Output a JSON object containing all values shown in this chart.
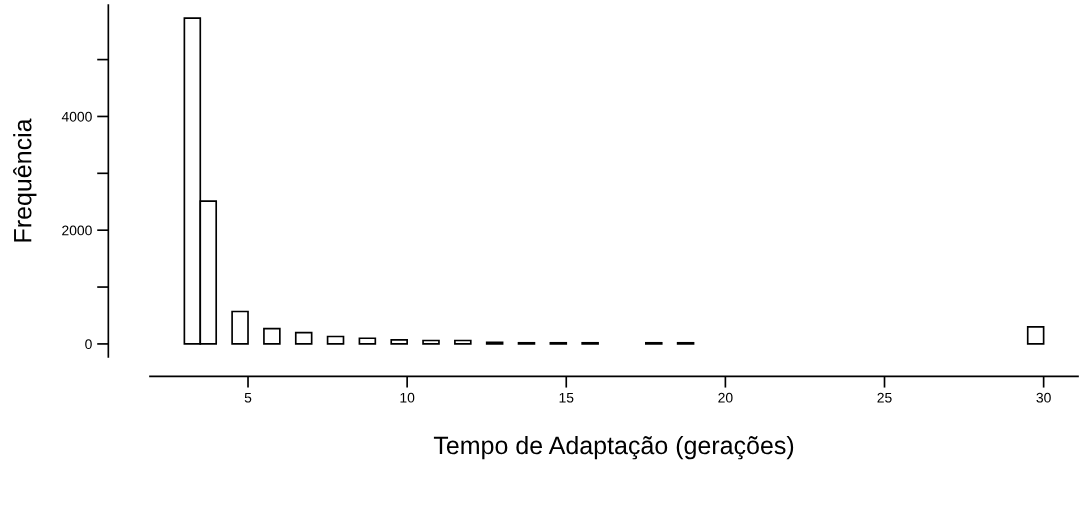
{
  "chart_data": {
    "type": "histogram",
    "xlabel": "Tempo de Adaptação (gerações)",
    "ylabel": "Frequência",
    "bins": [
      3,
      3.5,
      4,
      4.5,
      5,
      5.5,
      6,
      6.5,
      7,
      7.5,
      8,
      8.5,
      9,
      9.5,
      10,
      10.5,
      11,
      11.5,
      12,
      12.5,
      13,
      13.5,
      14,
      14.5,
      15,
      15.5,
      16,
      16.5,
      17,
      17.5,
      18,
      18.5,
      19,
      19.5,
      20,
      20.5,
      21,
      21.5,
      22,
      22.5,
      23,
      23.5,
      24,
      24.5,
      25,
      25.5,
      26,
      26.5,
      27,
      27.5,
      28,
      28.5,
      29,
      29.5,
      30
    ],
    "values": [
      5730,
      2510,
      0,
      570,
      0,
      270,
      0,
      200,
      0,
      130,
      0,
      100,
      0,
      70,
      0,
      60,
      0,
      60,
      0,
      30,
      0,
      20,
      0,
      20,
      0,
      20,
      0,
      0,
      0,
      20,
      0,
      20,
      0,
      0,
      0,
      0,
      0,
      0,
      0,
      0,
      0,
      0,
      0,
      0,
      0,
      0,
      0,
      0,
      0,
      0,
      0,
      0,
      0,
      300
    ],
    "color": "#ffffff",
    "xlim": [
      1.92,
      31.08
    ],
    "ylim": [
      -230,
      5960
    ],
    "xticks": [
      5,
      10,
      15,
      20,
      25,
      30
    ],
    "yticks": [
      0,
      {
        "value": 1000,
        "label": null
      },
      2000,
      {
        "value": 3000,
        "label": null
      },
      4000,
      {
        "value": 5000,
        "label": null
      }
    ],
    "grid": false,
    "legend": false
  }
}
